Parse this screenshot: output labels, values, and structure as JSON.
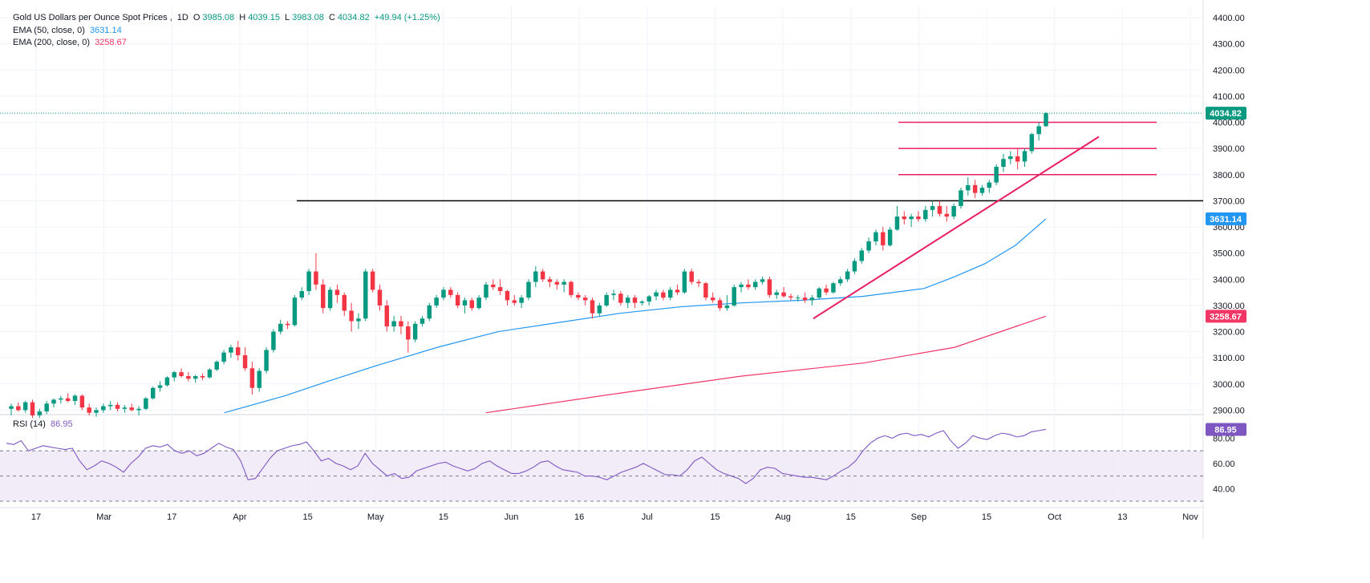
{
  "legend": {
    "title": "Gold US Dollars per Ounce Spot Prices",
    "interval": "1D",
    "open_label": "O",
    "open": "3985.08",
    "high_label": "H",
    "high": "4039.15",
    "low_label": "L",
    "low": "3983.08",
    "close_label": "C",
    "close": "4034.82",
    "change": "+49.94 (+1.25%)",
    "ema50_label": "EMA (50, close, 0)",
    "ema50_value": "3631.14",
    "ema200_label": "EMA (200, close, 0)",
    "ema200_value": "3258.67",
    "rsi_label": "RSI (14)",
    "rsi_value": "86.95"
  },
  "colors": {
    "up": "#089981",
    "down": "#f23645",
    "ema50": "#2196f3",
    "ema200": "#f23666",
    "rsi": "#7e57c2",
    "rsi_band": "#ede7f6",
    "trendline": "#e91e63",
    "level": "#e91e63",
    "support": "#000000"
  },
  "chart_data": [
    {
      "type": "candlestick",
      "title": "Gold US Dollars per Ounce Spot Prices",
      "interval": "1D",
      "y_axis": {
        "min": 2870,
        "max": 4440,
        "ticks": [
          2900,
          3000,
          3100,
          3200,
          3300,
          3400,
          3500,
          3600,
          3700,
          3800,
          3900,
          4000,
          4100,
          4200,
          4300,
          4400
        ]
      },
      "x_axis": {
        "labels": [
          "17",
          "Mar",
          "17",
          "Apr",
          "15",
          "May",
          "15",
          "Jun",
          "16",
          "Jul",
          "15",
          "Aug",
          "15",
          "Sep",
          "15",
          "Oct",
          "13",
          "Nov"
        ]
      },
      "last_price": 4034.82,
      "ohlc_approx": [
        [
          2905,
          2925,
          2880,
          2915
        ],
        [
          2915,
          2930,
          2895,
          2900
        ],
        [
          2900,
          2935,
          2890,
          2930
        ],
        [
          2930,
          2940,
          2870,
          2880
        ],
        [
          2880,
          2905,
          2870,
          2895
        ],
        [
          2895,
          2935,
          2885,
          2925
        ],
        [
          2925,
          2945,
          2910,
          2940
        ],
        [
          2940,
          2955,
          2925,
          2945
        ],
        [
          2945,
          2965,
          2930,
          2935
        ],
        [
          2935,
          2960,
          2920,
          2955
        ],
        [
          2955,
          2960,
          2900,
          2910
        ],
        [
          2910,
          2925,
          2880,
          2890
        ],
        [
          2890,
          2910,
          2875,
          2900
        ],
        [
          2900,
          2925,
          2890,
          2915
        ],
        [
          2915,
          2935,
          2900,
          2920
        ],
        [
          2920,
          2930,
          2895,
          2905
        ],
        [
          2905,
          2920,
          2890,
          2910
        ],
        [
          2910,
          2925,
          2895,
          2900
        ],
        [
          2900,
          2915,
          2880,
          2905
        ],
        [
          2905,
          2950,
          2900,
          2945
        ],
        [
          2945,
          2990,
          2940,
          2985
        ],
        [
          2985,
          3010,
          2970,
          2995
        ],
        [
          2995,
          3030,
          2990,
          3025
        ],
        [
          3025,
          3050,
          3010,
          3045
        ],
        [
          3045,
          3060,
          3025,
          3030
        ],
        [
          3030,
          3045,
          3010,
          3020
        ],
        [
          3020,
          3035,
          3005,
          3030
        ],
        [
          3030,
          3040,
          3015,
          3025
        ],
        [
          3025,
          3060,
          3020,
          3055
        ],
        [
          3055,
          3090,
          3050,
          3085
        ],
        [
          3085,
          3130,
          3075,
          3120
        ],
        [
          3120,
          3150,
          3100,
          3140
        ],
        [
          3140,
          3165,
          3090,
          3110
        ],
        [
          3110,
          3140,
          3050,
          3060
        ],
        [
          3060,
          3085,
          2960,
          2985
        ],
        [
          2985,
          3060,
          2970,
          3050
        ],
        [
          3050,
          3140,
          3040,
          3130
        ],
        [
          3130,
          3210,
          3120,
          3200
        ],
        [
          3200,
          3245,
          3190,
          3230
        ],
        [
          3230,
          3240,
          3210,
          3225
        ],
        [
          3225,
          3340,
          3220,
          3330
        ],
        [
          3330,
          3370,
          3320,
          3355
        ],
        [
          3355,
          3440,
          3340,
          3430
        ],
        [
          3430,
          3500,
          3360,
          3380
        ],
        [
          3380,
          3400,
          3270,
          3290
        ],
        [
          3290,
          3370,
          3280,
          3360
        ],
        [
          3360,
          3380,
          3310,
          3340
        ],
        [
          3340,
          3350,
          3260,
          3280
        ],
        [
          3280,
          3310,
          3200,
          3240
        ],
        [
          3240,
          3270,
          3210,
          3250
        ],
        [
          3250,
          3440,
          3240,
          3430
        ],
        [
          3430,
          3440,
          3350,
          3360
        ],
        [
          3360,
          3380,
          3280,
          3300
        ],
        [
          3300,
          3320,
          3200,
          3220
        ],
        [
          3220,
          3260,
          3200,
          3240
        ],
        [
          3240,
          3260,
          3190,
          3220
        ],
        [
          3220,
          3240,
          3120,
          3170
        ],
        [
          3170,
          3240,
          3160,
          3230
        ],
        [
          3230,
          3260,
          3220,
          3250
        ],
        [
          3250,
          3310,
          3240,
          3300
        ],
        [
          3300,
          3340,
          3290,
          3330
        ],
        [
          3330,
          3370,
          3320,
          3360
        ],
        [
          3360,
          3370,
          3330,
          3340
        ],
        [
          3340,
          3350,
          3290,
          3300
        ],
        [
          3300,
          3330,
          3270,
          3320
        ],
        [
          3320,
          3330,
          3280,
          3290
        ],
        [
          3290,
          3340,
          3285,
          3330
        ],
        [
          3330,
          3390,
          3320,
          3380
        ],
        [
          3380,
          3400,
          3360,
          3370
        ],
        [
          3370,
          3400,
          3340,
          3355
        ],
        [
          3355,
          3360,
          3300,
          3320
        ],
        [
          3320,
          3340,
          3300,
          3310
        ],
        [
          3310,
          3340,
          3290,
          3330
        ],
        [
          3330,
          3400,
          3320,
          3390
        ],
        [
          3390,
          3450,
          3370,
          3430
        ],
        [
          3430,
          3440,
          3390,
          3400
        ],
        [
          3400,
          3410,
          3370,
          3390
        ],
        [
          3390,
          3400,
          3360,
          3380
        ],
        [
          3380,
          3400,
          3350,
          3390
        ],
        [
          3390,
          3395,
          3330,
          3340
        ],
        [
          3340,
          3350,
          3320,
          3330
        ],
        [
          3330,
          3340,
          3300,
          3320
        ],
        [
          3320,
          3330,
          3250,
          3270
        ],
        [
          3270,
          3310,
          3260,
          3300
        ],
        [
          3300,
          3350,
          3295,
          3340
        ],
        [
          3340,
          3360,
          3320,
          3345
        ],
        [
          3345,
          3355,
          3300,
          3310
        ],
        [
          3310,
          3340,
          3290,
          3330
        ],
        [
          3330,
          3340,
          3290,
          3310
        ],
        [
          3310,
          3320,
          3300,
          3315
        ],
        [
          3315,
          3340,
          3300,
          3335
        ],
        [
          3335,
          3360,
          3320,
          3350
        ],
        [
          3350,
          3360,
          3320,
          3330
        ],
        [
          3330,
          3370,
          3320,
          3360
        ],
        [
          3360,
          3380,
          3340,
          3350
        ],
        [
          3350,
          3440,
          3345,
          3430
        ],
        [
          3430,
          3440,
          3380,
          3390
        ],
        [
          3390,
          3400,
          3370,
          3385
        ],
        [
          3385,
          3390,
          3320,
          3330
        ],
        [
          3330,
          3350,
          3310,
          3320
        ],
        [
          3320,
          3330,
          3280,
          3290
        ],
        [
          3290,
          3340,
          3280,
          3300
        ],
        [
          3300,
          3380,
          3295,
          3370
        ],
        [
          3370,
          3390,
          3350,
          3380
        ],
        [
          3380,
          3400,
          3360,
          3370
        ],
        [
          3370,
          3400,
          3360,
          3390
        ],
        [
          3390,
          3410,
          3380,
          3400
        ],
        [
          3400,
          3410,
          3330,
          3340
        ],
        [
          3340,
          3360,
          3325,
          3350
        ],
        [
          3350,
          3370,
          3330,
          3335
        ],
        [
          3335,
          3345,
          3320,
          3330
        ],
        [
          3330,
          3340,
          3315,
          3330
        ],
        [
          3330,
          3350,
          3310,
          3320
        ],
        [
          3320,
          3340,
          3300,
          3330
        ],
        [
          3330,
          3370,
          3325,
          3365
        ],
        [
          3365,
          3380,
          3340,
          3350
        ],
        [
          3350,
          3390,
          3345,
          3385
        ],
        [
          3385,
          3410,
          3375,
          3400
        ],
        [
          3400,
          3440,
          3390,
          3430
        ],
        [
          3430,
          3480,
          3420,
          3470
        ],
        [
          3470,
          3520,
          3460,
          3510
        ],
        [
          3510,
          3560,
          3500,
          3545
        ],
        [
          3545,
          3590,
          3530,
          3580
        ],
        [
          3580,
          3600,
          3510,
          3530
        ],
        [
          3530,
          3600,
          3525,
          3590
        ],
        [
          3590,
          3680,
          3585,
          3640
        ],
        [
          3640,
          3660,
          3610,
          3630
        ],
        [
          3630,
          3650,
          3600,
          3640
        ],
        [
          3640,
          3660,
          3620,
          3630
        ],
        [
          3630,
          3680,
          3620,
          3665
        ],
        [
          3665,
          3700,
          3640,
          3680
        ],
        [
          3680,
          3700,
          3640,
          3650
        ],
        [
          3650,
          3680,
          3620,
          3640
        ],
        [
          3640,
          3690,
          3630,
          3680
        ],
        [
          3680,
          3750,
          3670,
          3740
        ],
        [
          3740,
          3790,
          3720,
          3760
        ],
        [
          3760,
          3780,
          3710,
          3730
        ],
        [
          3730,
          3760,
          3720,
          3750
        ],
        [
          3750,
          3780,
          3730,
          3770
        ],
        [
          3770,
          3840,
          3760,
          3830
        ],
        [
          3830,
          3880,
          3810,
          3860
        ],
        [
          3860,
          3890,
          3840,
          3870
        ],
        [
          3870,
          3900,
          3820,
          3850
        ],
        [
          3850,
          3900,
          3830,
          3890
        ],
        [
          3890,
          3960,
          3880,
          3955
        ],
        [
          3955,
          4000,
          3930,
          3985
        ],
        [
          3985,
          4039,
          3983,
          4035
        ]
      ],
      "horizontal_levels": [
        3700,
        3800,
        3900,
        4000
      ],
      "trendline": {
        "from": {
          "label": "Aug 15",
          "price": 3250
        },
        "to": {
          "label": "Oct 10",
          "price": 3945
        }
      }
    },
    {
      "type": "line",
      "name": "EMA (50, close, 0)",
      "last_value": 3631.14,
      "points_approx": [
        [
          35,
          2890
        ],
        [
          45,
          2955
        ],
        [
          52,
          3010
        ],
        [
          60,
          3070
        ],
        [
          70,
          3140
        ],
        [
          80,
          3200
        ],
        [
          90,
          3235
        ],
        [
          100,
          3270
        ],
        [
          110,
          3295
        ],
        [
          120,
          3310
        ],
        [
          130,
          3320
        ],
        [
          140,
          3335
        ],
        [
          150,
          3365
        ],
        [
          155,
          3410
        ],
        [
          160,
          3460
        ],
        [
          165,
          3530
        ],
        [
          170,
          3631
        ]
      ]
    },
    {
      "type": "line",
      "name": "EMA (200, close, 0)",
      "last_value": 3258.67,
      "points_approx": [
        [
          78,
          2890
        ],
        [
          100,
          2965
        ],
        [
          120,
          3030
        ],
        [
          140,
          3080
        ],
        [
          155,
          3140
        ],
        [
          170,
          3259
        ]
      ]
    },
    {
      "type": "line",
      "name": "RSI (14)",
      "y_axis": {
        "ticks": [
          40,
          60,
          80
        ],
        "overbought": 70,
        "oversold": 30,
        "midline": 50
      },
      "last_value": 86.95,
      "values_approx": [
        76,
        75,
        78,
        70,
        72,
        74,
        73,
        72,
        71,
        72,
        62,
        55,
        58,
        62,
        60,
        57,
        53,
        60,
        65,
        72,
        74,
        73,
        75,
        70,
        68,
        70,
        66,
        68,
        72,
        76,
        73,
        71,
        62,
        47,
        48,
        56,
        64,
        70,
        72,
        74,
        75,
        77,
        70,
        62,
        64,
        60,
        58,
        55,
        58,
        68,
        60,
        55,
        50,
        52,
        48,
        49,
        54,
        56,
        58,
        60,
        61,
        58,
        56,
        54,
        56,
        60,
        62,
        58,
        55,
        52,
        52,
        54,
        57,
        61,
        62,
        58,
        55,
        54,
        53,
        50,
        50,
        49,
        47,
        50,
        53,
        55,
        57,
        60,
        57,
        54,
        51,
        51,
        50,
        55,
        62,
        65,
        60,
        55,
        52,
        50,
        48,
        44,
        48,
        55,
        57,
        56,
        52,
        51,
        50,
        49,
        49,
        48,
        47,
        50,
        54,
        57,
        62,
        70,
        76,
        80,
        82,
        80,
        83,
        84,
        82,
        83,
        81,
        84,
        86,
        78,
        72,
        76,
        82,
        80,
        79,
        82,
        84,
        83,
        81,
        82,
        85,
        86,
        87
      ]
    }
  ]
}
